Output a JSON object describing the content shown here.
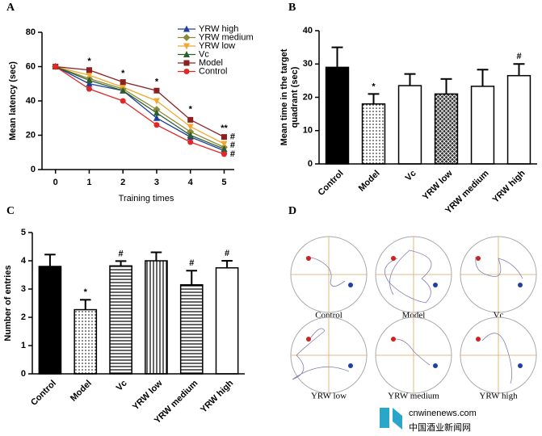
{
  "chart_data": [
    {
      "type": "line",
      "panel": "A",
      "xlabel": "Training times",
      "ylabel": "Mean latency (sec)",
      "x": [
        0,
        1,
        2,
        3,
        4,
        5
      ],
      "xlim": [
        -0.4,
        5.3
      ],
      "xticks": [
        0,
        1,
        2,
        3,
        4,
        5
      ],
      "ylim": [
        0,
        80
      ],
      "yticks": [
        0,
        20,
        40,
        60,
        80
      ],
      "legend": "upper right",
      "series": [
        {
          "name": "YRW high",
          "color": "#1f3f9f",
          "marker": "triangle",
          "values": [
            60,
            50,
            46,
            30,
            19,
            11
          ]
        },
        {
          "name": "YRW medium",
          "color": "#8a8a3a",
          "marker": "diamond",
          "values": [
            60,
            53,
            47,
            35,
            22,
            13
          ]
        },
        {
          "name": "YRW low",
          "color": "#f0a830",
          "marker": "triangle-down",
          "values": [
            60,
            55,
            48,
            40,
            25,
            15
          ]
        },
        {
          "name": "Vc",
          "color": "#2e5e2e",
          "marker": "triangle",
          "values": [
            60,
            52,
            46,
            33,
            20,
            12
          ]
        },
        {
          "name": "Model",
          "color": "#8b2020",
          "marker": "square",
          "values": [
            60,
            58,
            51,
            46,
            29,
            19
          ]
        },
        {
          "name": "Control",
          "color": "#e02828",
          "marker": "circle",
          "values": [
            60,
            47,
            40,
            26,
            16,
            9
          ]
        }
      ],
      "annotations": [
        {
          "text": "*",
          "x": 1,
          "y": 63,
          "color": "#a03030"
        },
        {
          "text": "*",
          "x": 2,
          "y": 56,
          "color": "#a03030"
        },
        {
          "text": "*",
          "x": 3,
          "y": 51,
          "color": "#a03030"
        },
        {
          "text": "*",
          "x": 4,
          "y": 35,
          "color": "#a03030"
        },
        {
          "text": "**",
          "x": 5,
          "y": 24,
          "color": "#a03030"
        },
        {
          "text": "#",
          "x": 5.25,
          "y": 19,
          "color": "#d4b050"
        },
        {
          "text": "#",
          "x": 5.25,
          "y": 14,
          "color": "#e8a030"
        },
        {
          "text": "#",
          "x": 5.25,
          "y": 9,
          "color": "#2040a0"
        }
      ]
    },
    {
      "type": "bar",
      "panel": "B",
      "ylabel": [
        "Mean time in the target",
        "quadrant (sec)"
      ],
      "categories": [
        "Control",
        "Model",
        "Vc",
        "YRW low",
        "YRW medium",
        "YRW high"
      ],
      "values": [
        29,
        18,
        23.5,
        21,
        23.3,
        26.5
      ],
      "errors": [
        6,
        3,
        3.5,
        4.5,
        5,
        3.5
      ],
      "patterns": [
        "solid",
        "dots",
        "none",
        "cross",
        "none",
        "none"
      ],
      "markers": [
        null,
        "*",
        null,
        null,
        null,
        "#"
      ],
      "ylim": [
        0,
        40
      ],
      "yticks": [
        0,
        10,
        20,
        30,
        40
      ]
    },
    {
      "type": "bar",
      "panel": "C",
      "ylabel": [
        "Number of entries"
      ],
      "categories": [
        "Control",
        "Model",
        "Vc",
        "YRW low",
        "YRW medium",
        "YRW high"
      ],
      "values": [
        3.8,
        2.27,
        3.82,
        4.0,
        3.15,
        3.75
      ],
      "errors": [
        0.42,
        0.35,
        0.17,
        0.3,
        0.5,
        0.25
      ],
      "patterns": [
        "solid",
        "dots",
        "hlines",
        "vlines",
        "hlines",
        "none"
      ],
      "markers": [
        null,
        "*",
        "#",
        null,
        "#",
        "#"
      ],
      "ylim": [
        0,
        5
      ],
      "yticks": [
        0,
        1,
        2,
        3,
        4,
        5
      ]
    }
  ],
  "panel_d": {
    "label": "D",
    "labels": [
      "Control",
      "Model",
      "Vc",
      "YRW low",
      "YRW medium",
      "YRW high"
    ]
  },
  "watermark": {
    "url": "cnwinenews.com",
    "name": "中国酒业新闻网"
  }
}
